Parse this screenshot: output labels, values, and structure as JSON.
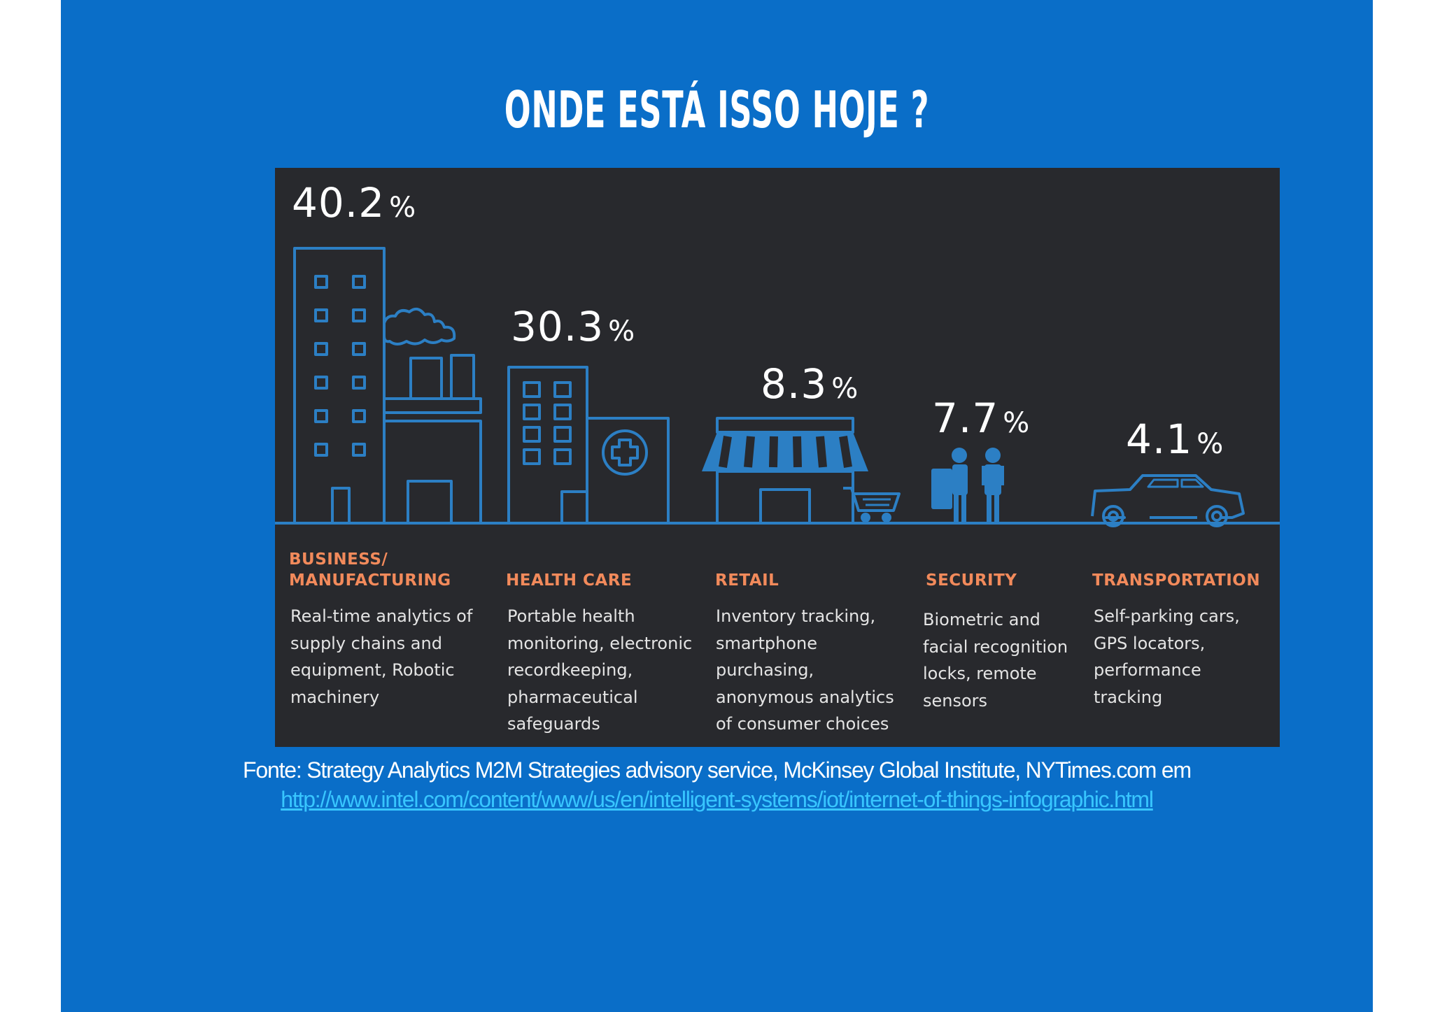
{
  "slide": {
    "title": "ONDE ESTÁ ISSO HOJE ?",
    "background_color": "#0a6ec8"
  },
  "infographic": {
    "background_color": "#28292d",
    "line_color": "#2c7fc4",
    "heading_color": "#f28a5b",
    "unit": "%",
    "sectors": [
      {
        "percent": "40.2",
        "category": "BUSINESS/\nMANUFACTURING",
        "description": "Real-time analytics of\nsupply chains and\nequipment, Robotic\nmachinery",
        "icon": "factory-icon"
      },
      {
        "percent": "30.3",
        "category": "HEALTH CARE",
        "description": "Portable health\nmonitoring, electronic\nrecordkeeping,\npharmaceutical\nsafeguards",
        "icon": "hospital-icon"
      },
      {
        "percent": "8.3",
        "category": "RETAIL",
        "description": "Inventory tracking,\nsmartphone\npurchasing,\nanonymous analytics\nof consumer choices",
        "icon": "store-icon"
      },
      {
        "percent": "7.7",
        "category": "SECURITY",
        "description": "Biometric and\nfacial recognition\nlocks, remote\nsensors",
        "icon": "security-guards-icon"
      },
      {
        "percent": "4.1",
        "category": "TRANSPORTATION",
        "description": "Self-parking cars,\nGPS locators,\nperformance\ntracking",
        "icon": "car-icon"
      }
    ]
  },
  "source": {
    "text": "Fonte: Strategy Analytics M2M Strategies advisory service, McKinsey Global Institute, NYTimes.com em",
    "link": "http://www.intel.com/content/www/us/en/intelligent-systems/iot/internet-of-things-infographic.html",
    "link_color": "#38c6ff"
  }
}
